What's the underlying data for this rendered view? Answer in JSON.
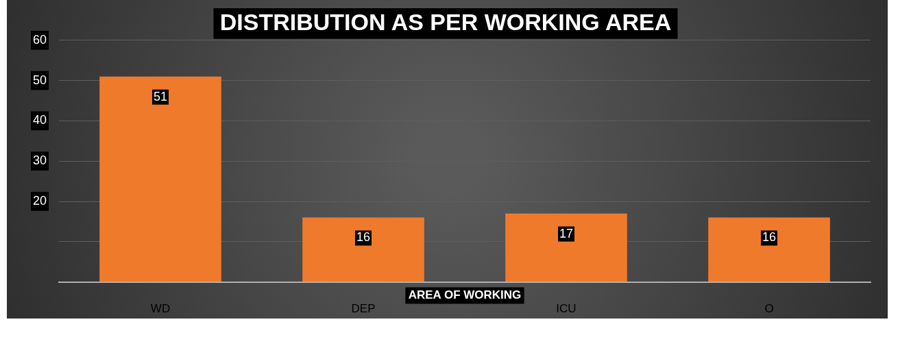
{
  "chart_data": {
    "type": "bar",
    "title": "DISTRIBUTION AS PER WORKING AREA",
    "xlabel": "AREA OF WORKING",
    "categories": [
      "WD",
      "DEP",
      "ICU",
      "O"
    ],
    "values": [
      51,
      16,
      17,
      16
    ],
    "color": "#f07a2c",
    "ylim": [
      0,
      60
    ],
    "yticks": [
      {
        "value": 0,
        "label": null
      },
      {
        "value": 10,
        "label": null
      },
      20,
      30,
      40,
      50,
      60
    ],
    "grid": "y",
    "data_labels": true,
    "legend": false
  }
}
